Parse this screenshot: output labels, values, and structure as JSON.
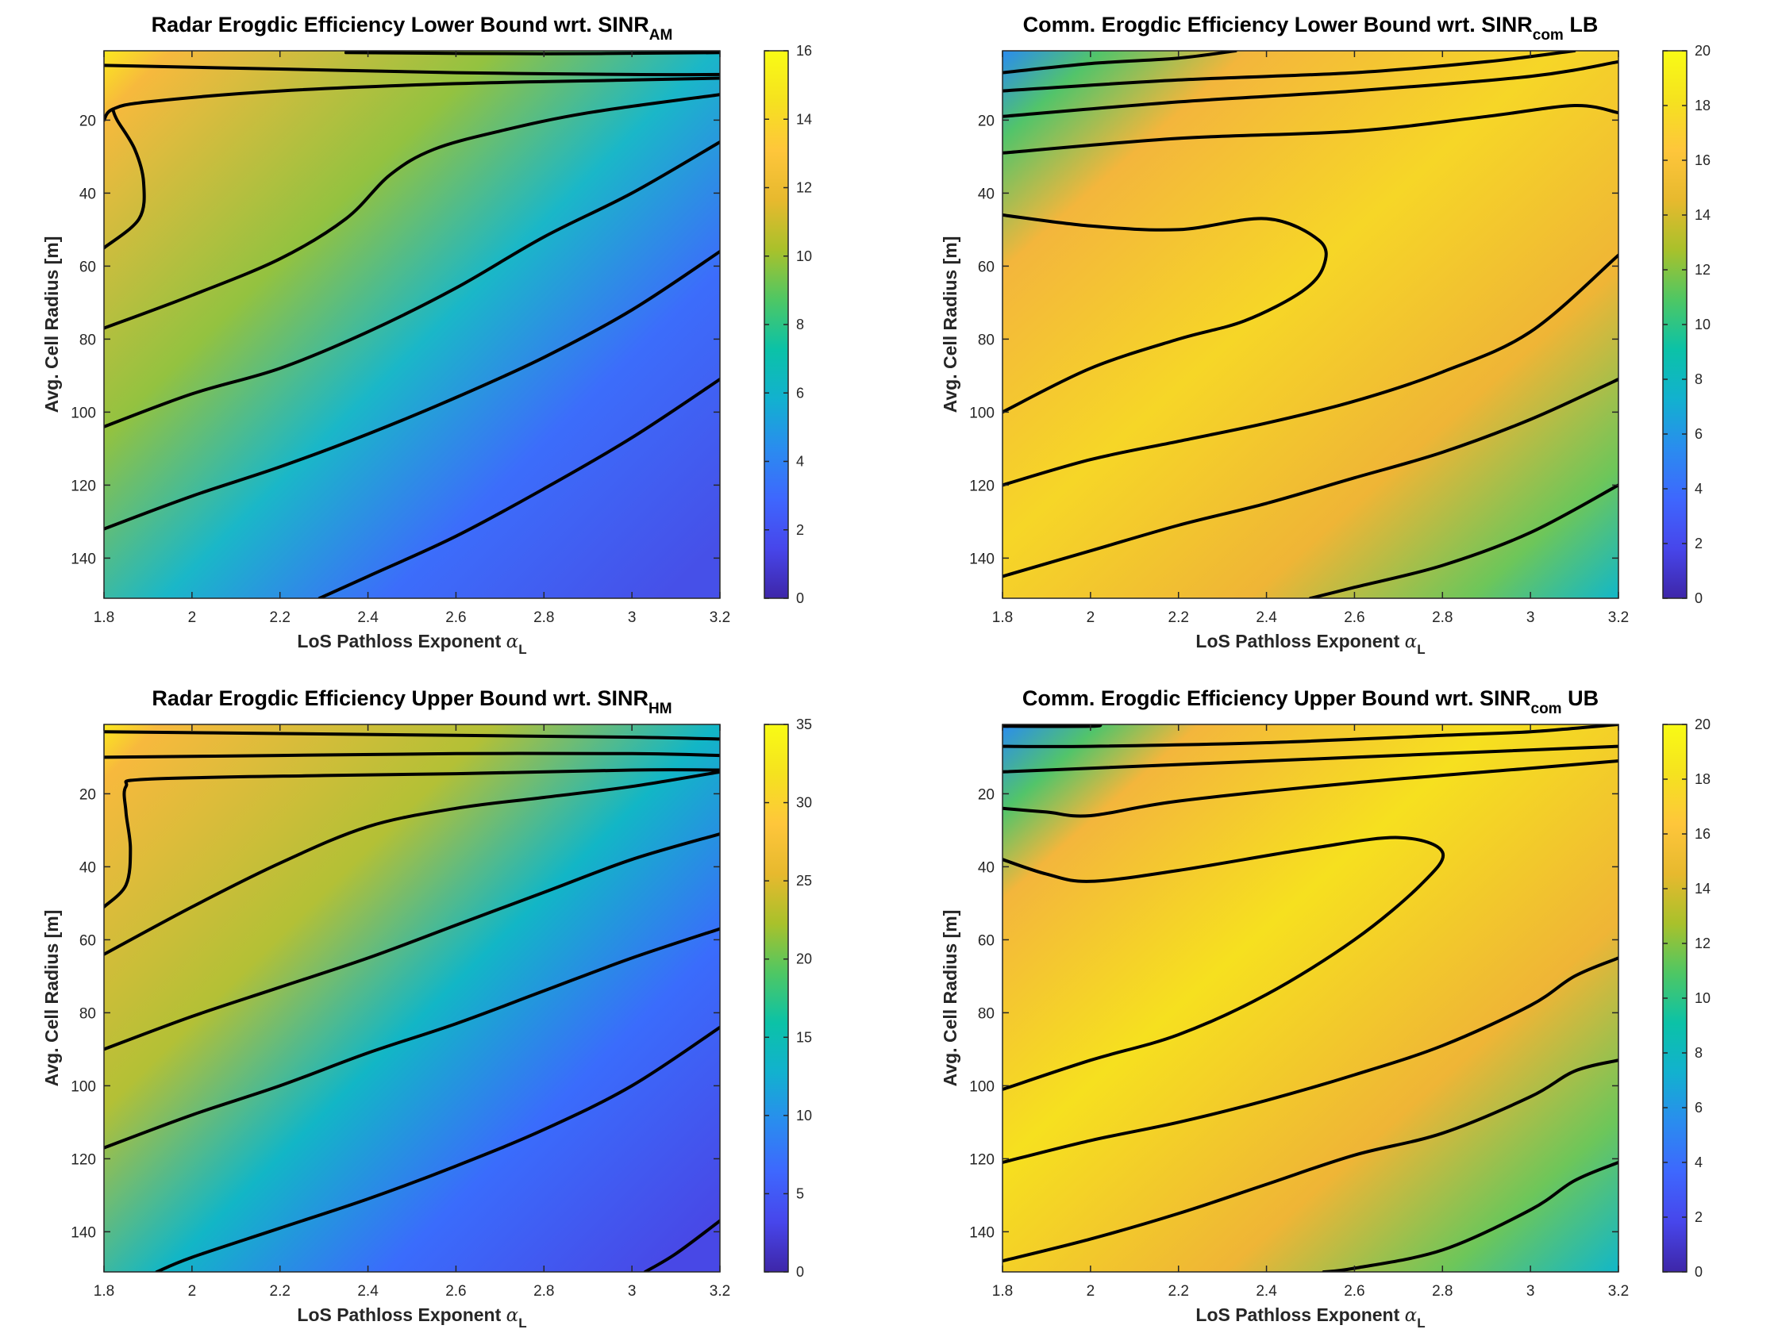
{
  "chart_data": [
    {
      "type": "heatmap",
      "subtype": "contour",
      "title_main": "Radar Erogdic Efficiency Lower Bound wrt. SINR",
      "title_sub": "AM",
      "title_tail": "",
      "xlabel": "LoS Pathloss Exponent",
      "xlabel_symbol": "α",
      "xlabel_sub": "L",
      "ylabel": "Avg. Cell Radius [m]",
      "xlim": [
        1.8,
        3.2
      ],
      "ylim": [
        1,
        151
      ],
      "xticks": [
        "1.8",
        "2",
        "2.2",
        "2.4",
        "2.6",
        "2.8",
        "3",
        "3.2"
      ],
      "yticks": [
        "20",
        "40",
        "60",
        "80",
        "100",
        "120",
        "140"
      ],
      "colorbar_range": [
        0,
        16
      ],
      "colorbar_ticks": [
        "0",
        "2",
        "4",
        "6",
        "8",
        "10",
        "12",
        "14",
        "16"
      ],
      "contours": [
        [
          [
            2.35,
            1.5
          ],
          [
            2.8,
            1.8
          ],
          [
            3.2,
            1.5
          ]
        ],
        [
          [
            1.8,
            5
          ],
          [
            2.2,
            6
          ],
          [
            2.6,
            7
          ],
          [
            3.0,
            7.5
          ],
          [
            3.2,
            7.5
          ]
        ],
        [
          [
            1.8,
            20
          ],
          [
            1.82,
            17
          ],
          [
            1.9,
            15
          ],
          [
            2.2,
            12
          ],
          [
            2.6,
            10
          ],
          [
            3.0,
            9
          ],
          [
            3.2,
            8.5
          ]
        ],
        [
          [
            1.8,
            55
          ],
          [
            1.88,
            47
          ],
          [
            1.89,
            37
          ],
          [
            1.87,
            28
          ],
          [
            1.83,
            20
          ],
          [
            1.82,
            17
          ]
        ],
        [
          [
            1.8,
            77
          ],
          [
            2.0,
            68
          ],
          [
            2.2,
            58
          ],
          [
            2.35,
            47
          ],
          [
            2.45,
            35
          ],
          [
            2.55,
            28
          ],
          [
            2.7,
            23
          ],
          [
            2.9,
            18
          ],
          [
            3.2,
            13
          ]
        ],
        [
          [
            1.8,
            104
          ],
          [
            2.0,
            95
          ],
          [
            2.2,
            88
          ],
          [
            2.4,
            78
          ],
          [
            2.6,
            66
          ],
          [
            2.8,
            52
          ],
          [
            3.0,
            40
          ],
          [
            3.2,
            26
          ]
        ],
        [
          [
            1.8,
            132
          ],
          [
            2.0,
            123
          ],
          [
            2.2,
            115
          ],
          [
            2.4,
            106
          ],
          [
            2.6,
            96
          ],
          [
            2.8,
            85
          ],
          [
            3.0,
            72
          ],
          [
            3.2,
            56
          ]
        ],
        [
          [
            2.29,
            151
          ],
          [
            2.4,
            145
          ],
          [
            2.6,
            134
          ],
          [
            2.8,
            121
          ],
          [
            3.0,
            107
          ],
          [
            3.2,
            91
          ]
        ]
      ]
    },
    {
      "type": "heatmap",
      "subtype": "contour",
      "title_main": "Comm. Erogdic Efficiency Lower Bound wrt. SINR",
      "title_sub": "com",
      "title_tail": " LB",
      "xlabel": "LoS Pathloss Exponent",
      "xlabel_symbol": "α",
      "xlabel_sub": "L",
      "ylabel": "Avg. Cell Radius [m]",
      "xlim": [
        1.8,
        3.2
      ],
      "ylim": [
        1,
        151
      ],
      "xticks": [
        "1.8",
        "2",
        "2.2",
        "2.4",
        "2.6",
        "2.8",
        "3",
        "3.2"
      ],
      "yticks": [
        "20",
        "40",
        "60",
        "80",
        "100",
        "120",
        "140"
      ],
      "colorbar_range": [
        0,
        20
      ],
      "colorbar_ticks": [
        "0",
        "2",
        "4",
        "6",
        "8",
        "10",
        "12",
        "14",
        "16",
        "18",
        "20"
      ],
      "contours": [
        [
          [
            1.8,
            7
          ],
          [
            2.0,
            4.5
          ],
          [
            2.2,
            3
          ],
          [
            2.33,
            1
          ]
        ],
        [
          [
            1.8,
            12
          ],
          [
            2.2,
            9
          ],
          [
            2.6,
            7
          ],
          [
            2.9,
            4
          ],
          [
            3.1,
            1
          ]
        ],
        [
          [
            1.8,
            19
          ],
          [
            2.2,
            15
          ],
          [
            2.6,
            12
          ],
          [
            3.0,
            8
          ],
          [
            3.2,
            4
          ]
        ],
        [
          [
            1.8,
            29
          ],
          [
            2.2,
            25
          ],
          [
            2.6,
            23
          ],
          [
            2.9,
            19
          ],
          [
            3.1,
            16
          ],
          [
            3.2,
            18
          ]
        ],
        [
          [
            1.8,
            46
          ],
          [
            2.0,
            49
          ],
          [
            2.2,
            50
          ],
          [
            2.4,
            47
          ],
          [
            2.52,
            53
          ],
          [
            2.53,
            60
          ],
          [
            2.48,
            67
          ],
          [
            2.35,
            75
          ],
          [
            2.2,
            80
          ],
          [
            2.0,
            88
          ],
          [
            1.8,
            100
          ]
        ],
        [
          [
            1.8,
            120
          ],
          [
            2.0,
            113
          ],
          [
            2.2,
            108
          ],
          [
            2.4,
            103
          ],
          [
            2.6,
            97
          ],
          [
            2.8,
            89
          ],
          [
            3.0,
            78
          ],
          [
            3.2,
            57
          ]
        ],
        [
          [
            1.8,
            145
          ],
          [
            2.0,
            138
          ],
          [
            2.2,
            131
          ],
          [
            2.4,
            125
          ],
          [
            2.6,
            118
          ],
          [
            2.8,
            111
          ],
          [
            3.0,
            102
          ],
          [
            3.2,
            91
          ]
        ],
        [
          [
            2.5,
            151
          ],
          [
            2.6,
            148
          ],
          [
            2.8,
            142
          ],
          [
            3.0,
            133
          ],
          [
            3.2,
            120
          ]
        ]
      ]
    },
    {
      "type": "heatmap",
      "subtype": "contour",
      "title_main": "Radar Erogdic Efficiency Upper Bound wrt. SINR",
      "title_sub": "HM",
      "title_tail": "",
      "xlabel": "LoS Pathloss Exponent",
      "xlabel_symbol": "α",
      "xlabel_sub": "L",
      "ylabel": "Avg. Cell Radius [m]",
      "xlim": [
        1.8,
        3.2
      ],
      "ylim": [
        1,
        151
      ],
      "xticks": [
        "1.8",
        "2",
        "2.2",
        "2.4",
        "2.6",
        "2.8",
        "3",
        "3.2"
      ],
      "yticks": [
        "20",
        "40",
        "60",
        "80",
        "100",
        "120",
        "140"
      ],
      "colorbar_range": [
        0,
        35
      ],
      "colorbar_ticks": [
        "0",
        "5",
        "10",
        "15",
        "20",
        "25",
        "30",
        "35"
      ],
      "contours": [
        [
          [
            1.8,
            3
          ],
          [
            2.2,
            3.5
          ],
          [
            2.6,
            4
          ],
          [
            3.0,
            4.5
          ],
          [
            3.2,
            5
          ]
        ],
        [
          [
            1.8,
            10
          ],
          [
            2.2,
            9.5
          ],
          [
            2.6,
            9
          ],
          [
            3.0,
            9
          ],
          [
            3.2,
            9.5
          ]
        ],
        [
          [
            1.8,
            51
          ],
          [
            1.85,
            45
          ],
          [
            1.86,
            35
          ],
          [
            1.85,
            25
          ],
          [
            1.85,
            18
          ],
          [
            1.9,
            16
          ],
          [
            2.3,
            15
          ],
          [
            2.6,
            14.5
          ],
          [
            3.0,
            13.5
          ],
          [
            3.2,
            13.5
          ]
        ],
        [
          [
            1.8,
            64
          ],
          [
            2.0,
            51
          ],
          [
            2.2,
            39
          ],
          [
            2.4,
            29
          ],
          [
            2.6,
            24
          ],
          [
            2.8,
            21
          ],
          [
            3.0,
            18
          ],
          [
            3.2,
            14
          ]
        ],
        [
          [
            1.8,
            90
          ],
          [
            2.0,
            81
          ],
          [
            2.2,
            73
          ],
          [
            2.4,
            65
          ],
          [
            2.6,
            56
          ],
          [
            2.8,
            47
          ],
          [
            3.0,
            38
          ],
          [
            3.2,
            31
          ]
        ],
        [
          [
            1.8,
            117
          ],
          [
            2.0,
            108
          ],
          [
            2.2,
            100
          ],
          [
            2.4,
            91
          ],
          [
            2.6,
            83
          ],
          [
            2.8,
            74
          ],
          [
            3.0,
            65
          ],
          [
            3.2,
            57
          ]
        ],
        [
          [
            1.92,
            151
          ],
          [
            2.0,
            147
          ],
          [
            2.2,
            139
          ],
          [
            2.4,
            131
          ],
          [
            2.6,
            122
          ],
          [
            2.8,
            112
          ],
          [
            3.0,
            100
          ],
          [
            3.2,
            84
          ]
        ],
        [
          [
            3.03,
            151
          ],
          [
            3.1,
            146
          ],
          [
            3.2,
            137
          ]
        ]
      ]
    },
    {
      "type": "heatmap",
      "subtype": "contour",
      "title_main": "Comm. Erogdic Efficiency Upper Bound wrt. SINR",
      "title_sub": "com",
      "title_tail": " UB",
      "xlabel": "LoS Pathloss Exponent",
      "xlabel_symbol": "α",
      "xlabel_sub": "L",
      "ylabel": "Avg. Cell Radius [m]",
      "xlim": [
        1.8,
        3.2
      ],
      "ylim": [
        1,
        151
      ],
      "xticks": [
        "1.8",
        "2",
        "2.2",
        "2.4",
        "2.6",
        "2.8",
        "3",
        "3.2"
      ],
      "yticks": [
        "20",
        "40",
        "60",
        "80",
        "100",
        "120",
        "140"
      ],
      "colorbar_range": [
        0,
        20
      ],
      "colorbar_ticks": [
        "0",
        "2",
        "4",
        "6",
        "8",
        "10",
        "12",
        "14",
        "16",
        "18",
        "20"
      ],
      "contours": [
        [
          [
            1.8,
            1.5
          ],
          [
            2.0,
            1.5
          ],
          [
            2.02,
            1
          ]
        ],
        [
          [
            1.8,
            7
          ],
          [
            2.0,
            7
          ],
          [
            2.4,
            6
          ],
          [
            2.8,
            4
          ],
          [
            3.0,
            3
          ],
          [
            3.2,
            1
          ]
        ],
        [
          [
            1.8,
            14
          ],
          [
            2.0,
            13
          ],
          [
            2.4,
            11
          ],
          [
            2.8,
            9
          ],
          [
            3.2,
            7
          ]
        ],
        [
          [
            1.8,
            24
          ],
          [
            1.9,
            25
          ],
          [
            2.0,
            26
          ],
          [
            2.2,
            22
          ],
          [
            2.6,
            17
          ],
          [
            3.0,
            13
          ],
          [
            3.2,
            11
          ]
        ],
        [
          [
            1.8,
            38
          ],
          [
            1.9,
            42
          ],
          [
            2.0,
            44
          ],
          [
            2.2,
            41
          ],
          [
            2.5,
            35
          ],
          [
            2.7,
            32
          ],
          [
            2.8,
            36
          ],
          [
            2.75,
            45
          ],
          [
            2.6,
            60
          ],
          [
            2.4,
            75
          ],
          [
            2.2,
            86
          ],
          [
            2.0,
            93
          ],
          [
            1.8,
            101
          ]
        ],
        [
          [
            1.8,
            121
          ],
          [
            2.0,
            115
          ],
          [
            2.2,
            110
          ],
          [
            2.4,
            104
          ],
          [
            2.6,
            97
          ],
          [
            2.8,
            89
          ],
          [
            3.0,
            78
          ],
          [
            3.1,
            70
          ],
          [
            3.2,
            65
          ]
        ],
        [
          [
            1.8,
            148
          ],
          [
            2.0,
            142
          ],
          [
            2.2,
            135
          ],
          [
            2.4,
            127
          ],
          [
            2.6,
            119
          ],
          [
            2.8,
            113
          ],
          [
            3.0,
            103
          ],
          [
            3.1,
            96
          ],
          [
            3.2,
            93
          ]
        ],
        [
          [
            2.53,
            151
          ],
          [
            2.6,
            150
          ],
          [
            2.8,
            145
          ],
          [
            3.0,
            134
          ],
          [
            3.1,
            126
          ],
          [
            3.2,
            121
          ]
        ]
      ]
    }
  ],
  "colors": {
    "colormap": [
      "#3e26a8",
      "#4746eb",
      "#3e67fe",
      "#2a8cef",
      "#12b1cf",
      "#0bc2a7",
      "#4ec764",
      "#a9c12b",
      "#e7b92e",
      "#fec63b",
      "#f5e21f",
      "#f9fb15"
    ],
    "contour": "#000000",
    "axes": "#262626"
  }
}
